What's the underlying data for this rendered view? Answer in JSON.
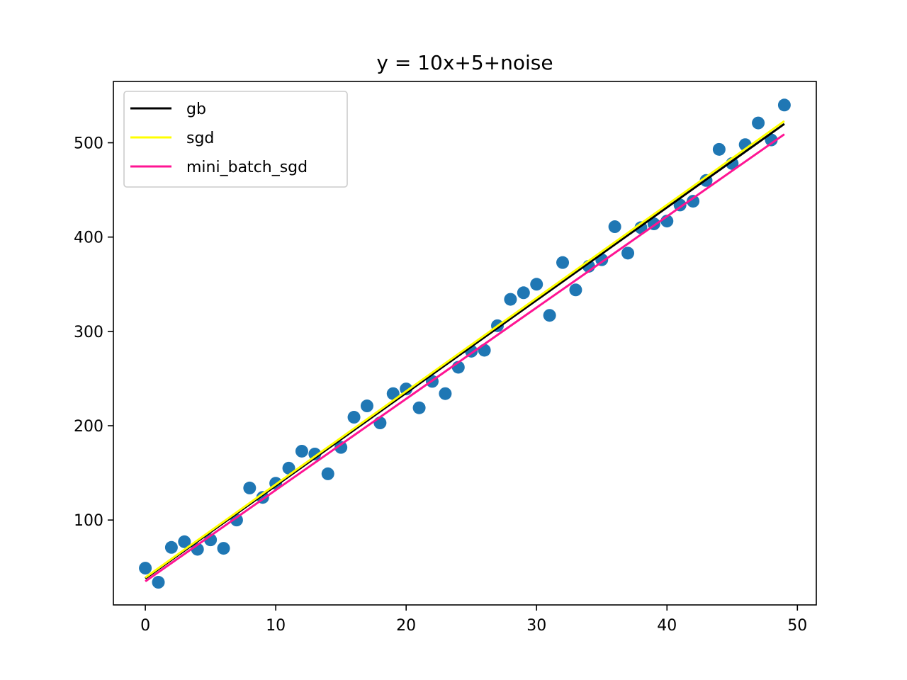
{
  "chart_data": {
    "type": "scatter",
    "title": "y = 10x+5+noise",
    "xlabel": "",
    "ylabel": "",
    "xlim": [
      -2.45,
      51.45
    ],
    "ylim": [
      10,
      565
    ],
    "x_ticks": [
      0,
      10,
      20,
      30,
      40,
      50
    ],
    "y_ticks": [
      100,
      200,
      300,
      400,
      500
    ],
    "grid": false,
    "legend_position": "upper left",
    "scatter": {
      "color": "#1f77b4",
      "x": [
        0,
        1,
        2,
        3,
        4,
        5,
        6,
        7,
        8,
        9,
        10,
        11,
        12,
        13,
        14,
        15,
        16,
        17,
        18,
        19,
        20,
        21,
        22,
        23,
        24,
        25,
        26,
        27,
        28,
        29,
        30,
        31,
        32,
        33,
        34,
        35,
        36,
        37,
        38,
        39,
        40,
        41,
        42,
        43,
        44,
        45,
        46,
        47,
        48,
        49
      ],
      "y": [
        49,
        34,
        71,
        77,
        69,
        79,
        70,
        100,
        134,
        124,
        139,
        155,
        173,
        170,
        149,
        177,
        209,
        221,
        203,
        234,
        239,
        219,
        247,
        234,
        262,
        279,
        280,
        306,
        334,
        341,
        350,
        317,
        373,
        344,
        369,
        376,
        411,
        383,
        410,
        414,
        417,
        434,
        438,
        460,
        493,
        478,
        498,
        521,
        503,
        540
      ]
    },
    "series": [
      {
        "name": "gb",
        "color": "#000000",
        "x": [
          0,
          49
        ],
        "y": [
          38,
          520
        ]
      },
      {
        "name": "sgd",
        "color": "#ffff00",
        "x": [
          0,
          49
        ],
        "y": [
          39,
          523
        ]
      },
      {
        "name": "mini_batch_sgd",
        "color": "#ff1493",
        "x": [
          0,
          49
        ],
        "y": [
          35,
          509
        ]
      }
    ]
  }
}
